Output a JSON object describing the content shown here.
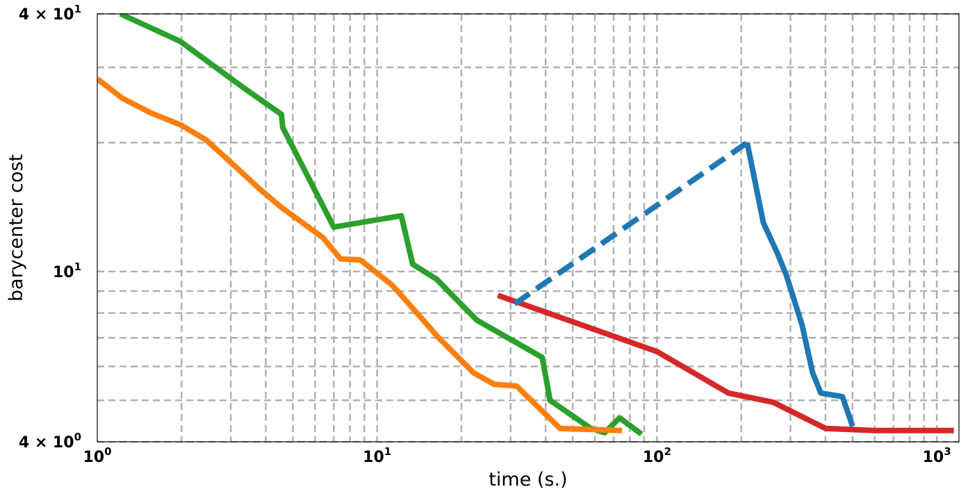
{
  "chart_data": {
    "type": "line",
    "title": "",
    "xlabel": "time (s.)",
    "ylabel": "barycenter cost",
    "xscale": "log",
    "yscale": "log",
    "xlim": [
      1,
      1200
    ],
    "ylim": [
      4,
      40
    ],
    "grid": true,
    "legend": "none",
    "x_ticks": [
      {
        "value": 1,
        "base": "10",
        "exp": "0"
      },
      {
        "value": 10,
        "base": "10",
        "exp": "1"
      },
      {
        "value": 100,
        "base": "10",
        "exp": "2"
      },
      {
        "value": 1000,
        "base": "10",
        "exp": "3"
      }
    ],
    "y_ticks": [
      {
        "value": 4,
        "mant": "4",
        "base": "10",
        "exp": "0"
      },
      {
        "value": 10,
        "mant": "",
        "base": "10",
        "exp": "1"
      },
      {
        "value": 40,
        "mant": "4",
        "base": "10",
        "exp": "1"
      }
    ],
    "x_minor_grid": [
      2,
      3,
      4,
      5,
      6,
      7,
      8,
      9,
      20,
      30,
      40,
      50,
      60,
      70,
      80,
      90,
      200,
      300,
      400,
      500,
      600,
      700,
      800,
      900
    ],
    "y_minor_grid": [
      5,
      6,
      7,
      8,
      9,
      20,
      30
    ],
    "series": [
      {
        "color": "#2ca02c",
        "dashed": false,
        "points": [
          [
            1.21,
            40
          ],
          [
            1.98,
            34.5
          ],
          [
            3.3,
            27
          ],
          [
            4.55,
            23.3
          ],
          [
            4.6,
            21.7
          ],
          [
            7.0,
            12.7
          ],
          [
            12.2,
            13.5
          ],
          [
            13.4,
            10.4
          ],
          [
            16.3,
            9.6
          ],
          [
            22.7,
            7.7
          ],
          [
            38.9,
            6.3
          ],
          [
            41.5,
            5.0
          ],
          [
            58,
            4.3
          ],
          [
            65,
            4.2
          ],
          [
            73.5,
            4.55
          ],
          [
            88,
            4.17
          ]
        ]
      },
      {
        "color": "#ff7f0e",
        "dashed": false,
        "points": [
          [
            1.0,
            28.2
          ],
          [
            1.23,
            25.4
          ],
          [
            1.55,
            23.5
          ],
          [
            1.99,
            22.0
          ],
          [
            2.45,
            20.3
          ],
          [
            3.0,
            18.0
          ],
          [
            3.8,
            15.6
          ],
          [
            4.5,
            14.2
          ],
          [
            6.4,
            12.0
          ],
          [
            7.4,
            10.7
          ],
          [
            8.7,
            10.65
          ],
          [
            11.3,
            9.3
          ],
          [
            12.2,
            8.8
          ],
          [
            16.6,
            7.0
          ],
          [
            22.1,
            5.8
          ],
          [
            26.2,
            5.45
          ],
          [
            31.5,
            5.4
          ],
          [
            45,
            4.3
          ],
          [
            75,
            4.25
          ]
        ]
      },
      {
        "color": "#d62728",
        "dashed": false,
        "points": [
          [
            27,
            8.8
          ],
          [
            100,
            6.5
          ],
          [
            180,
            5.2
          ],
          [
            260,
            4.95
          ],
          [
            400,
            4.3
          ],
          [
            600,
            4.25
          ],
          [
            1150,
            4.25
          ]
        ]
      },
      {
        "color": "#1f77b4",
        "dashed": true,
        "points": [
          [
            31,
            8.4
          ],
          [
            210,
            20
          ]
        ]
      },
      {
        "color": "#1f77b4",
        "dashed": false,
        "points": [
          [
            210,
            20
          ],
          [
            240,
            13
          ],
          [
            270,
            11
          ],
          [
            290,
            9.8
          ],
          [
            330,
            7.5
          ],
          [
            360,
            5.8
          ],
          [
            385,
            5.2
          ],
          [
            460,
            5.1
          ],
          [
            500,
            4.35
          ]
        ]
      }
    ]
  }
}
